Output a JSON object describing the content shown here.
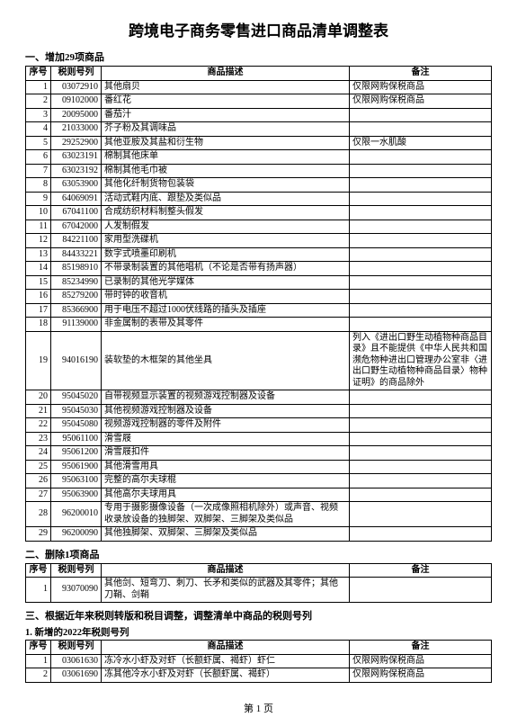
{
  "title": "跨境电子商务零售进口商品清单调整表",
  "pageNumber": "第 1 页",
  "headers": {
    "seq": "序号",
    "code": "税则号列",
    "desc": "商品描述",
    "note": "备注"
  },
  "section1": {
    "title": "一、增加29项商品",
    "rows": [
      {
        "seq": "1",
        "code": "03072910",
        "desc": "其他扇贝",
        "note": "仅限网购保税商品"
      },
      {
        "seq": "2",
        "code": "09102000",
        "desc": "番红花",
        "note": "仅限网购保税商品"
      },
      {
        "seq": "3",
        "code": "20095000",
        "desc": "番茄汁",
        "note": ""
      },
      {
        "seq": "4",
        "code": "21033000",
        "desc": "芥子粉及其调味品",
        "note": ""
      },
      {
        "seq": "5",
        "code": "29252900",
        "desc": "其他亚胺及其盐和衍生物",
        "note": "仅限一水肌酸"
      },
      {
        "seq": "6",
        "code": "63023191",
        "desc": "棉制其他床单",
        "note": ""
      },
      {
        "seq": "7",
        "code": "63023192",
        "desc": "棉制其他毛巾被",
        "note": ""
      },
      {
        "seq": "8",
        "code": "63053900",
        "desc": "其他化纤制货物包装袋",
        "note": ""
      },
      {
        "seq": "9",
        "code": "64069091",
        "desc": "活动式鞋内底、跟垫及类似品",
        "note": ""
      },
      {
        "seq": "10",
        "code": "67041100",
        "desc": "合成纺织材料制整头假发",
        "note": ""
      },
      {
        "seq": "11",
        "code": "67042000",
        "desc": "人发制假发",
        "note": ""
      },
      {
        "seq": "12",
        "code": "84221100",
        "desc": "家用型洗碟机",
        "note": ""
      },
      {
        "seq": "13",
        "code": "84433221",
        "desc": "数字式喷墨印刷机",
        "note": ""
      },
      {
        "seq": "14",
        "code": "85198910",
        "desc": "不带录制装置的其他唱机（不论是否带有扬声器）",
        "note": ""
      },
      {
        "seq": "15",
        "code": "85234990",
        "desc": "已录制的其他光学媒体",
        "note": ""
      },
      {
        "seq": "16",
        "code": "85279200",
        "desc": "带时钟的收音机",
        "note": ""
      },
      {
        "seq": "17",
        "code": "85366900",
        "desc": "用于电压不超过1000伏线路的插头及插座",
        "note": ""
      },
      {
        "seq": "18",
        "code": "91139000",
        "desc": "非金属制的表带及其零件",
        "note": ""
      },
      {
        "seq": "19",
        "code": "94016190",
        "desc": "装软垫的木框架的其他坐具",
        "note": "列入《进出口野生动植物种商品目录》且不能提供《中华人民共和国濒危物种进出口管理办公室非〈进出口野生动植物种商品目录〉物种证明》的商品除外"
      },
      {
        "seq": "20",
        "code": "95045020",
        "desc": "自带视频显示装置的视频游戏控制器及设备",
        "note": ""
      },
      {
        "seq": "21",
        "code": "95045030",
        "desc": "其他视频游戏控制器及设备",
        "note": ""
      },
      {
        "seq": "22",
        "code": "95045080",
        "desc": "视频游戏控制器的零件及附件",
        "note": ""
      },
      {
        "seq": "23",
        "code": "95061100",
        "desc": "滑雪屐",
        "note": ""
      },
      {
        "seq": "24",
        "code": "95061200",
        "desc": "滑雪屐扣件",
        "note": ""
      },
      {
        "seq": "25",
        "code": "95061900",
        "desc": "其他滑雪用具",
        "note": ""
      },
      {
        "seq": "26",
        "code": "95063100",
        "desc": "完整的高尔夫球棍",
        "note": ""
      },
      {
        "seq": "27",
        "code": "95063900",
        "desc": "其他高尔夫球用具",
        "note": ""
      },
      {
        "seq": "28",
        "code": "96200010",
        "desc": "专用于摄影摄像设备（一次成像照相机除外）或声音、视频收录放设备的独脚架、双脚架、三脚架及类似品",
        "note": ""
      },
      {
        "seq": "29",
        "code": "96200090",
        "desc": "其他独脚架、双脚架、三脚架及类似品",
        "note": ""
      }
    ]
  },
  "section2": {
    "title": "二、删除1项商品",
    "rows": [
      {
        "seq": "1",
        "code": "93070090",
        "desc": "其他剑、短弯刀、刺刀、长矛和类似的武器及其零件；其他刀鞘、剑鞘",
        "note": ""
      }
    ]
  },
  "section3": {
    "title": "三、根据近年来税则转版和税目调整，调整清单中商品的税则号列",
    "subTitle": "1. 新增的2022年税则号列",
    "rows": [
      {
        "seq": "1",
        "code": "03061630",
        "desc": "冻冷水小虾及对虾（长额虾属、褐虾）虾仁",
        "note": "仅限网购保税商品"
      },
      {
        "seq": "2",
        "code": "03061690",
        "desc": "冻其他冷水小虾及对虾（长额虾属、褐虾）",
        "note": "仅限网购保税商品"
      }
    ]
  }
}
